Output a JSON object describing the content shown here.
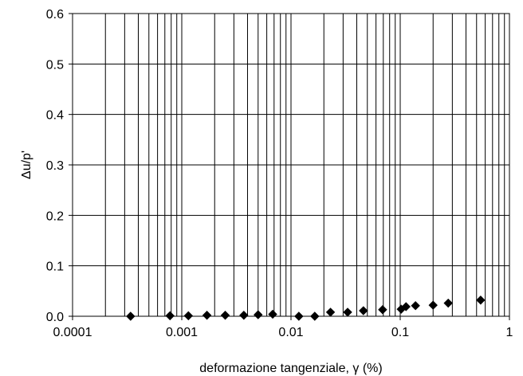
{
  "chart_data": {
    "type": "scatter",
    "title": "",
    "xlabel": "deformazione tangenziale, γ (%)",
    "ylabel": "Δu/p'",
    "xscale": "log",
    "xlim": [
      0.0001,
      1
    ],
    "ylim": [
      0,
      0.6
    ],
    "grid": "vertical minor and major lines on x; horizontal lines on y",
    "legend": "none",
    "marker": "diamond",
    "marker_color": "#000000",
    "xtick_labels": [
      "0.0001",
      "0.001",
      "0.01",
      "0.1",
      "1"
    ],
    "ytick_labels": [
      "0.0",
      "0.1",
      "0.2",
      "0.3",
      "0.4",
      "0.5",
      "0.6"
    ],
    "points": [
      {
        "x": 0.00034,
        "y": 0.0
      },
      {
        "x": 0.00078,
        "y": 0.001
      },
      {
        "x": 0.00115,
        "y": 0.001
      },
      {
        "x": 0.0017,
        "y": 0.002
      },
      {
        "x": 0.0025,
        "y": 0.002
      },
      {
        "x": 0.0037,
        "y": 0.002
      },
      {
        "x": 0.005,
        "y": 0.003
      },
      {
        "x": 0.0068,
        "y": 0.004
      },
      {
        "x": 0.0118,
        "y": 0.0
      },
      {
        "x": 0.0165,
        "y": 0.0
      },
      {
        "x": 0.023,
        "y": 0.008
      },
      {
        "x": 0.033,
        "y": 0.008
      },
      {
        "x": 0.046,
        "y": 0.011
      },
      {
        "x": 0.069,
        "y": 0.013
      },
      {
        "x": 0.102,
        "y": 0.014
      },
      {
        "x": 0.113,
        "y": 0.019
      },
      {
        "x": 0.138,
        "y": 0.021
      },
      {
        "x": 0.2,
        "y": 0.022
      },
      {
        "x": 0.275,
        "y": 0.026
      },
      {
        "x": 0.545,
        "y": 0.032
      }
    ]
  }
}
